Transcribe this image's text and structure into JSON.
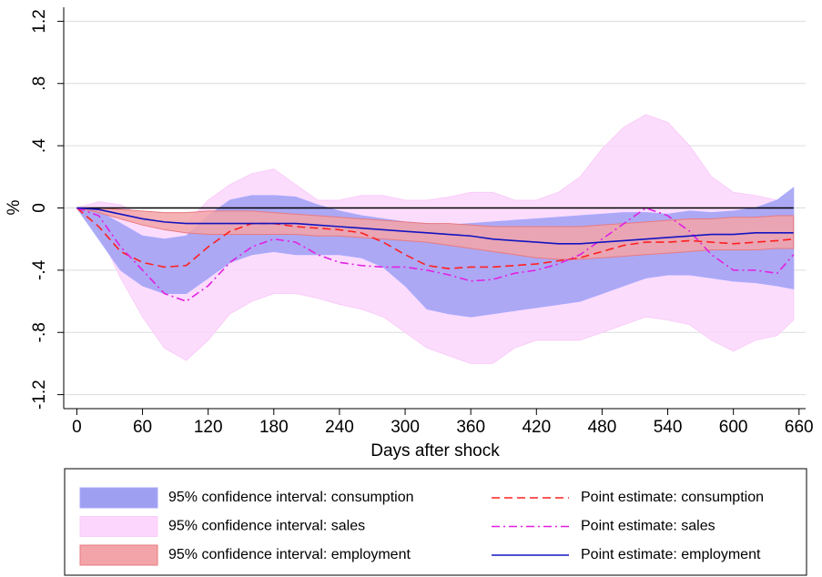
{
  "chart_data": {
    "type": "line",
    "x_label": "Days after shock",
    "y_label": "%",
    "x": [
      0,
      20,
      40,
      60,
      80,
      100,
      120,
      140,
      160,
      180,
      200,
      220,
      240,
      260,
      280,
      300,
      320,
      340,
      360,
      380,
      400,
      420,
      440,
      460,
      480,
      500,
      520,
      540,
      560,
      580,
      600,
      620,
      640,
      655
    ],
    "xlim": [
      -12,
      666
    ],
    "ylim": [
      -1.29,
      1.29
    ],
    "xticks": [
      0,
      60,
      120,
      180,
      240,
      300,
      360,
      420,
      480,
      540,
      600,
      660
    ],
    "yticks": [
      {
        "value": -1.2,
        "label": "-1.2"
      },
      {
        "value": -0.8,
        "label": "-.8"
      },
      {
        "value": -0.4,
        "label": "-.4"
      },
      0,
      {
        "value": 0.4,
        "label": ".4"
      },
      {
        "value": 0.8,
        "label": ".8"
      },
      1.2
    ],
    "grid": true,
    "reference_line": 0,
    "legend": "bottom",
    "series": [
      {
        "name": "95% confidence interval: consumption",
        "kind": "band",
        "color": "#9f9ff2",
        "edge": "#a8a8ff",
        "upper": [
          0,
          -0.02,
          -0.1,
          -0.18,
          -0.2,
          -0.18,
          -0.05,
          0.05,
          0.08,
          0.08,
          0.07,
          0.02,
          -0.02,
          -0.05,
          -0.07,
          -0.09,
          -0.1,
          -0.11,
          -0.1,
          -0.09,
          -0.08,
          -0.07,
          -0.06,
          -0.05,
          -0.04,
          -0.03,
          -0.03,
          -0.04,
          -0.02,
          -0.03,
          -0.02,
          0,
          0.05,
          0.13
        ],
        "lower": [
          0,
          -0.2,
          -0.4,
          -0.5,
          -0.55,
          -0.55,
          -0.45,
          -0.35,
          -0.3,
          -0.28,
          -0.3,
          -0.3,
          -0.3,
          -0.32,
          -0.38,
          -0.5,
          -0.65,
          -0.68,
          -0.7,
          -0.68,
          -0.66,
          -0.64,
          -0.62,
          -0.6,
          -0.55,
          -0.5,
          -0.45,
          -0.43,
          -0.43,
          -0.45,
          -0.47,
          -0.48,
          -0.5,
          -0.52
        ]
      },
      {
        "name": "Point estimate: consumption",
        "kind": "line",
        "style": "dash",
        "color": "#ff2020",
        "values": [
          0,
          -0.12,
          -0.28,
          -0.35,
          -0.38,
          -0.37,
          -0.25,
          -0.15,
          -0.1,
          -0.1,
          -0.12,
          -0.13,
          -0.14,
          -0.16,
          -0.22,
          -0.3,
          -0.37,
          -0.39,
          -0.38,
          -0.38,
          -0.37,
          -0.36,
          -0.34,
          -0.32,
          -0.28,
          -0.24,
          -0.22,
          -0.22,
          -0.21,
          -0.22,
          -0.23,
          -0.22,
          -0.21,
          -0.2
        ]
      },
      {
        "name": "95% confidence interval: sales",
        "kind": "band",
        "color": "#fcd6fc",
        "edge": "#f9cdf9",
        "upper": [
          0,
          0.04,
          0.02,
          -0.05,
          -0.1,
          -0.1,
          0.05,
          0.15,
          0.22,
          0.25,
          0.15,
          0.05,
          0.05,
          0.08,
          0.08,
          0.05,
          0.05,
          0.07,
          0.1,
          0.1,
          0.05,
          0.05,
          0.1,
          0.2,
          0.38,
          0.52,
          0.6,
          0.55,
          0.4,
          0.2,
          0.1,
          0.08,
          0.05,
          0.05
        ],
        "lower": [
          0,
          -0.15,
          -0.45,
          -0.7,
          -0.9,
          -0.98,
          -0.85,
          -0.68,
          -0.6,
          -0.55,
          -0.55,
          -0.58,
          -0.62,
          -0.65,
          -0.7,
          -0.8,
          -0.9,
          -0.95,
          -1.0,
          -1.0,
          -0.9,
          -0.85,
          -0.85,
          -0.85,
          -0.8,
          -0.75,
          -0.7,
          -0.72,
          -0.75,
          -0.85,
          -0.92,
          -0.85,
          -0.82,
          -0.72
        ]
      },
      {
        "name": "Point estimate: sales",
        "kind": "line",
        "style": "dashdot",
        "color": "#e020e0",
        "values": [
          0,
          -0.05,
          -0.25,
          -0.4,
          -0.55,
          -0.6,
          -0.5,
          -0.35,
          -0.25,
          -0.2,
          -0.22,
          -0.3,
          -0.35,
          -0.37,
          -0.38,
          -0.38,
          -0.4,
          -0.43,
          -0.47,
          -0.46,
          -0.42,
          -0.4,
          -0.36,
          -0.3,
          -0.2,
          -0.1,
          0,
          -0.05,
          -0.15,
          -0.3,
          -0.4,
          -0.4,
          -0.42,
          -0.3
        ]
      },
      {
        "name": "95% confidence interval: employment",
        "kind": "band",
        "color": "#f3a4a8",
        "edge": "#e87a80",
        "upper": [
          0,
          0,
          -0.01,
          -0.02,
          -0.03,
          -0.03,
          -0.02,
          -0.02,
          -0.02,
          -0.03,
          -0.04,
          -0.05,
          -0.06,
          -0.07,
          -0.08,
          -0.09,
          -0.1,
          -0.1,
          -0.11,
          -0.12,
          -0.12,
          -0.12,
          -0.12,
          -0.12,
          -0.11,
          -0.1,
          -0.09,
          -0.08,
          -0.07,
          -0.07,
          -0.06,
          -0.06,
          -0.05,
          -0.05
        ],
        "lower": [
          0,
          -0.03,
          -0.07,
          -0.11,
          -0.14,
          -0.16,
          -0.17,
          -0.17,
          -0.17,
          -0.17,
          -0.17,
          -0.18,
          -0.18,
          -0.19,
          -0.2,
          -0.21,
          -0.22,
          -0.24,
          -0.26,
          -0.28,
          -0.3,
          -0.32,
          -0.33,
          -0.33,
          -0.32,
          -0.31,
          -0.3,
          -0.29,
          -0.28,
          -0.27,
          -0.27,
          -0.27,
          -0.26,
          -0.26
        ]
      },
      {
        "name": "Point estimate: employment",
        "kind": "line",
        "style": "solid",
        "color": "#1414c0",
        "values": [
          0,
          -0.01,
          -0.04,
          -0.07,
          -0.09,
          -0.1,
          -0.1,
          -0.1,
          -0.1,
          -0.1,
          -0.1,
          -0.11,
          -0.12,
          -0.13,
          -0.14,
          -0.15,
          -0.16,
          -0.17,
          -0.18,
          -0.2,
          -0.21,
          -0.22,
          -0.23,
          -0.23,
          -0.22,
          -0.21,
          -0.2,
          -0.19,
          -0.18,
          -0.17,
          -0.17,
          -0.16,
          -0.16,
          -0.16
        ]
      }
    ]
  }
}
